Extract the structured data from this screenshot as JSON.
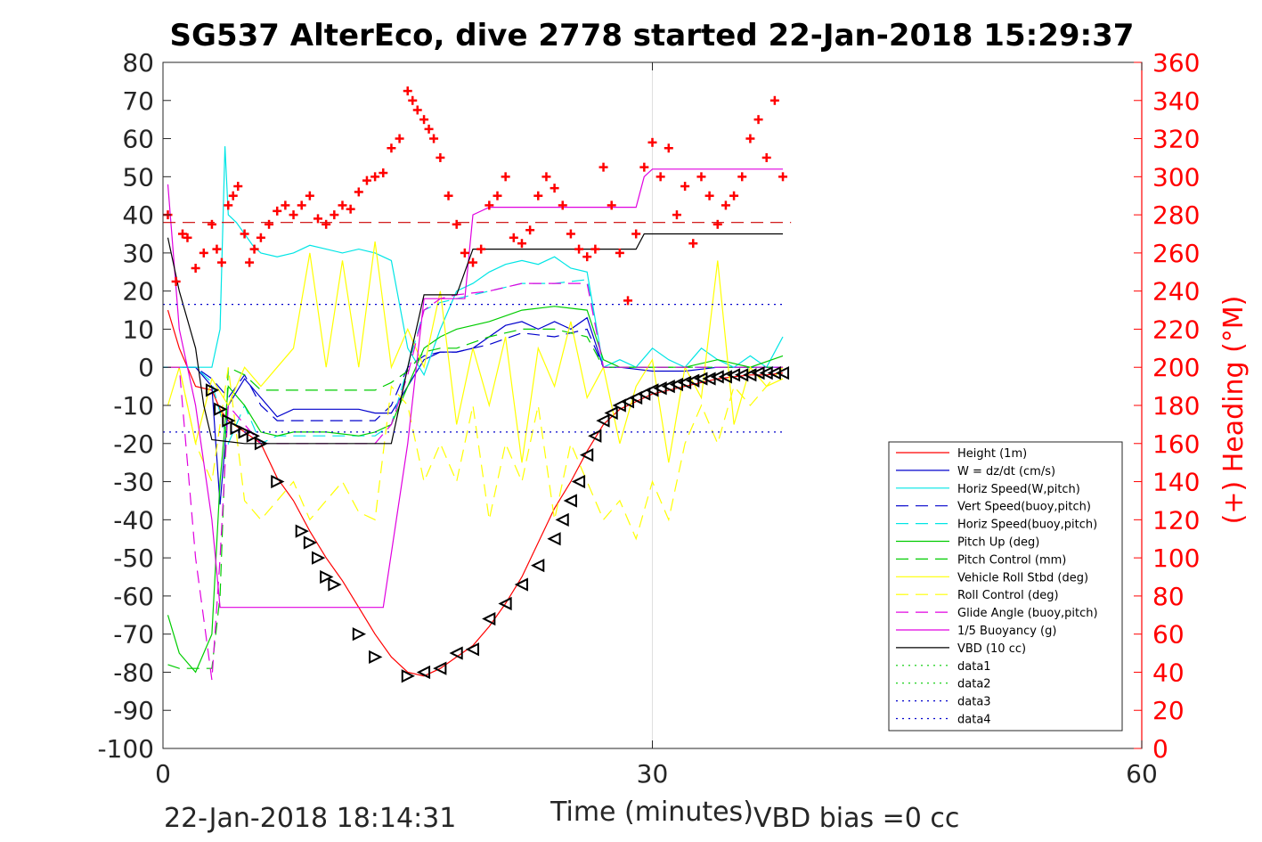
{
  "chart_data": {
    "type": "line",
    "title": "SG537 AlterEco, dive 2778 started 22-Jan-2018 15:29:37",
    "xlabel": "Time (minutes)",
    "ylabel": "",
    "y2label": "(+) Heading (°M)",
    "xlim": [
      0,
      60
    ],
    "ylim": [
      -100,
      80
    ],
    "y2lim": [
      0,
      360
    ],
    "xticks": [
      "0",
      "30",
      "60"
    ],
    "yticks": [
      "80",
      "70",
      "60",
      "50",
      "40",
      "30",
      "20",
      "10",
      "0",
      "-10",
      "-20",
      "-30",
      "-40",
      "-50",
      "-60",
      "-70",
      "-80",
      "-90",
      "-100"
    ],
    "y2ticks": [
      "360",
      "340",
      "320",
      "300",
      "280",
      "260",
      "240",
      "220",
      "200",
      "180",
      "160",
      "140",
      "120",
      "100",
      "80",
      "60",
      "40",
      "20",
      "0"
    ],
    "grid": "x at 30",
    "legend_position": "lower-right",
    "footer_left": "22-Jan-2018 18:14:31",
    "footer_right": "VBD bias =0 cc",
    "colors": {
      "red": "#ff0000",
      "blue": "#0000cc",
      "cyan": "#00e5e5",
      "green": "#00cc00",
      "yellow": "#ffff00",
      "magenta": "#e000e0",
      "black": "#000000"
    },
    "series": [
      {
        "name": "Height (1m)",
        "color": "#ff0000",
        "style": "solid",
        "x": [
          0.3,
          1,
          2,
          3,
          3.5,
          4,
          5,
          6,
          7,
          8,
          9,
          10,
          11,
          12,
          13,
          14,
          15,
          16,
          17,
          18,
          19,
          20,
          21,
          22,
          23,
          24,
          25,
          26,
          27,
          28,
          29,
          30,
          31,
          32,
          33,
          34,
          35,
          36,
          37,
          38
        ],
        "y": [
          15,
          5,
          -5,
          -6,
          -11,
          -14,
          -17,
          -20,
          -29,
          -35,
          -43,
          -50,
          -56,
          -63,
          -70,
          -76,
          -80,
          -81,
          -79,
          -76,
          -73,
          -68,
          -62,
          -55,
          -46,
          -37,
          -30,
          -22,
          -15,
          -11,
          -9,
          -7,
          -6,
          -5,
          -4,
          -3,
          -2.5,
          -2,
          -2,
          -1.5
        ]
      },
      {
        "name": "W = dz/dt (cm/s)",
        "color": "#0000cc",
        "style": "solid",
        "x": [
          0,
          1,
          2,
          3,
          3.5,
          4,
          5,
          6,
          7,
          8,
          10,
          12,
          13,
          14,
          15,
          16,
          17,
          18,
          19,
          20,
          21,
          22,
          23,
          24,
          25,
          26,
          27,
          28,
          30,
          32,
          34,
          36,
          38
        ],
        "y": [
          0,
          0,
          0,
          -5,
          -36,
          -10,
          -3,
          -8,
          -13,
          -11,
          -11,
          -11,
          -12,
          -12,
          -5,
          2,
          4,
          4,
          5,
          8,
          11,
          12,
          10,
          12,
          10,
          13,
          0,
          0,
          -1,
          -1,
          0,
          0,
          0
        ]
      },
      {
        "name": "Horiz Speed(W,pitch)",
        "color": "#00e5e5",
        "style": "solid",
        "x": [
          0,
          1,
          2,
          3,
          3.5,
          3.8,
          4,
          4.5,
          5,
          5.5,
          6,
          7,
          8,
          9,
          10,
          11,
          12,
          13,
          14,
          15,
          16,
          17,
          18,
          19,
          20,
          21,
          22,
          23,
          24,
          25,
          26,
          27,
          28,
          29,
          30,
          31,
          32,
          33,
          34,
          35,
          36,
          37,
          38
        ],
        "y": [
          0,
          0,
          0,
          0,
          10,
          58,
          40,
          38,
          35,
          32,
          30,
          29,
          30,
          32,
          31,
          30,
          31,
          30,
          28,
          5,
          -2,
          10,
          20,
          22,
          25,
          27,
          28,
          27,
          29,
          26,
          25,
          0,
          2,
          0,
          5,
          2,
          0,
          5,
          2,
          0,
          3,
          0,
          8
        ]
      },
      {
        "name": "Vert Speed(buoy,pitch)",
        "color": "#0000cc",
        "style": "dashed",
        "x": [
          0,
          2,
          3,
          4,
          5,
          6,
          7,
          10,
          13,
          14,
          15,
          16,
          17,
          18,
          20,
          22,
          24,
          26,
          27,
          30,
          34,
          38
        ],
        "y": [
          0,
          0,
          -3,
          -8,
          -2,
          -10,
          -14,
          -14,
          -14,
          -10,
          0,
          3,
          4,
          4,
          6,
          9,
          8,
          10,
          0,
          0,
          0,
          0
        ]
      },
      {
        "name": "Horiz Speed(buoy,pitch)",
        "color": "#00e5e5",
        "style": "dashed",
        "x": [
          0,
          2,
          3,
          4,
          5,
          6,
          7,
          10,
          13,
          14,
          15,
          16,
          17,
          18,
          20,
          22,
          24,
          26,
          27,
          30,
          34,
          38
        ],
        "y": [
          0,
          0,
          -4,
          -20,
          -10,
          -20,
          -18,
          -18,
          -18,
          -15,
          0,
          15,
          17,
          18,
          20,
          22,
          22,
          23,
          0,
          0,
          0,
          0
        ]
      },
      {
        "name": "Pitch Up (deg)",
        "color": "#00cc00",
        "style": "solid",
        "x": [
          0.3,
          1,
          2,
          3,
          3.5,
          4,
          5,
          6,
          7,
          8,
          10,
          12,
          13,
          14,
          15,
          16,
          17,
          18,
          20,
          22,
          24,
          26,
          27,
          28,
          30,
          32,
          34,
          36,
          38
        ],
        "y": [
          -65,
          -75,
          -80,
          -70,
          -30,
          -5,
          -10,
          -17,
          -18,
          -17,
          -17,
          -18,
          -17,
          -15,
          -5,
          5,
          8,
          10,
          12,
          15,
          16,
          15,
          2,
          0,
          0,
          0,
          2,
          0,
          3
        ]
      },
      {
        "name": "Pitch Control (mm)",
        "color": "#00cc00",
        "style": "dashed",
        "x": [
          0.3,
          1,
          2,
          3,
          3.5,
          4,
          5,
          6,
          7,
          10,
          13,
          14,
          15,
          16,
          17,
          18,
          20,
          22,
          24,
          26,
          27,
          28,
          30,
          34,
          38
        ],
        "y": [
          -78,
          -79,
          -79,
          -79,
          -60,
          0,
          -2,
          -6,
          -6,
          -6,
          -6,
          -4,
          -1,
          4,
          5,
          5,
          8,
          10,
          10,
          8,
          0,
          0,
          0,
          0,
          0
        ]
      },
      {
        "name": "Vehicle Roll Stbd (deg)",
        "color": "#ffff00",
        "style": "solid",
        "x": [
          0.3,
          1,
          2,
          3,
          4,
          5,
          6,
          7,
          8,
          9,
          10,
          11,
          12,
          13,
          14,
          15,
          16,
          17,
          18,
          19,
          20,
          21,
          22,
          23,
          24,
          25,
          26,
          27,
          28,
          29,
          30,
          31,
          32,
          33,
          34,
          35,
          36,
          37,
          38
        ],
        "y": [
          -10,
          0,
          -20,
          -3,
          -10,
          0,
          -5,
          0,
          5,
          30,
          0,
          28,
          0,
          33,
          0,
          10,
          0,
          20,
          -15,
          5,
          -10,
          8,
          -25,
          5,
          -5,
          12,
          -8,
          0,
          -20,
          -5,
          2,
          -25,
          0,
          -8,
          28,
          -15,
          0,
          -5,
          -3
        ]
      },
      {
        "name": "Roll Control (deg)",
        "color": "#ffff00",
        "style": "dashed",
        "x": [
          0.3,
          1,
          2,
          3,
          4,
          5,
          6,
          7,
          8,
          9,
          10,
          11,
          12,
          13,
          14,
          15,
          16,
          17,
          18,
          19,
          20,
          21,
          22,
          23,
          24,
          25,
          26,
          27,
          28,
          29,
          30,
          31,
          32,
          33,
          34,
          35,
          36,
          37,
          38
        ],
        "y": [
          0,
          0,
          -20,
          -30,
          0,
          -35,
          -40,
          -35,
          -30,
          -40,
          -35,
          -30,
          -38,
          -40,
          -5,
          -10,
          -30,
          -20,
          -30,
          -10,
          -40,
          -20,
          -30,
          -10,
          -40,
          -20,
          -30,
          -40,
          -35,
          -45,
          -30,
          -40,
          -20,
          -10,
          -20,
          -5,
          -10,
          -5,
          0
        ]
      },
      {
        "name": "Glide Angle (buoy,pitch)",
        "color": "#e000e0",
        "style": "dashed",
        "x": [
          0.3,
          1,
          2,
          3,
          3.5,
          4,
          5,
          6,
          7,
          10,
          13,
          14,
          15,
          16,
          17,
          18,
          20,
          22,
          24,
          26,
          27,
          28,
          30,
          34,
          38
        ],
        "y": [
          0,
          0,
          -50,
          -82,
          -50,
          -10,
          -15,
          -20,
          -20,
          -20,
          -20,
          -15,
          -2,
          15,
          18,
          19,
          20,
          22,
          22,
          22,
          0,
          0,
          0,
          0,
          0
        ]
      },
      {
        "name": "1/5 Buoyancy (g)",
        "color": "#e000e0",
        "style": "solid",
        "x": [
          0.3,
          1,
          2,
          3,
          3.5,
          4,
          5,
          8,
          13.5,
          15,
          16,
          17,
          18.5,
          19,
          20,
          25,
          29,
          29.5,
          30,
          38
        ],
        "y": [
          48,
          10,
          -10,
          -40,
          -63,
          -63,
          -63,
          -63,
          -63,
          -20,
          18,
          18,
          18,
          40,
          42,
          42,
          42,
          50,
          52,
          52
        ]
      },
      {
        "name": "VBD (10 cc)",
        "color": "#000000",
        "style": "solid",
        "x": [
          0.3,
          1,
          2,
          2.5,
          3,
          5,
          8,
          12,
          14,
          15,
          16,
          17,
          18,
          19,
          20,
          25,
          29,
          29.5,
          30,
          38
        ],
        "y": [
          34,
          20,
          5,
          -10,
          -19,
          -20,
          -20,
          -20,
          -20,
          0,
          19,
          19,
          19,
          31,
          31,
          31,
          31,
          35,
          35,
          35
        ]
      },
      {
        "name": "data1",
        "color": "#00cc00",
        "style": "dotted",
        "x": [],
        "y": []
      },
      {
        "name": "data2",
        "color": "#00cc00",
        "style": "dotted",
        "x": [],
        "y": []
      },
      {
        "name": "data3",
        "color": "#0000cc",
        "style": "dotted",
        "x": [
          0,
          38
        ],
        "y": [
          16.5,
          16.5
        ]
      },
      {
        "name": "data4",
        "color": "#0000cc",
        "style": "dotted",
        "x": [
          0,
          38
        ],
        "y": [
          -17,
          -17
        ]
      }
    ],
    "reference_lines": [
      {
        "axis": "y2",
        "value": 276,
        "color": "#cc0000",
        "style": "dashed",
        "x": [
          0,
          38.5
        ]
      }
    ],
    "heading_markers": {
      "axis": "y2",
      "color": "#ff0000",
      "symbol": "+",
      "x": [
        0.3,
        0.8,
        1.2,
        1.5,
        2,
        2.5,
        3,
        3.3,
        3.6,
        4,
        4.3,
        4.6,
        5,
        5.3,
        5.6,
        6,
        6.5,
        7,
        7.5,
        8,
        8.5,
        9,
        9.5,
        10,
        10.5,
        11,
        11.5,
        12,
        12.5,
        13,
        13.5,
        14,
        14.5,
        15,
        15.3,
        15.6,
        16,
        16.3,
        16.6,
        17,
        17.5,
        18,
        18.5,
        19,
        19.5,
        20,
        20.5,
        21,
        21.5,
        22,
        22.5,
        23,
        23.5,
        24,
        24.5,
        25,
        25.5,
        26,
        26.5,
        27,
        27.5,
        28,
        28.5,
        29,
        29.5,
        30,
        30.5,
        31,
        31.5,
        32,
        32.5,
        33,
        33.5,
        34,
        34.5,
        35,
        35.5,
        36,
        36.5,
        37,
        37.5,
        38
      ],
      "y": [
        280,
        245,
        270,
        268,
        252,
        260,
        275,
        262,
        255,
        285,
        290,
        295,
        270,
        255,
        262,
        268,
        275,
        282,
        285,
        280,
        285,
        290,
        278,
        275,
        280,
        285,
        283,
        292,
        298,
        300,
        302,
        315,
        320,
        345,
        340,
        335,
        330,
        325,
        320,
        310,
        290,
        275,
        260,
        255,
        262,
        285,
        290,
        300,
        268,
        265,
        272,
        290,
        300,
        294,
        285,
        270,
        262,
        258,
        262,
        305,
        285,
        260,
        235,
        270,
        305,
        318,
        300,
        315,
        280,
        295,
        265,
        300,
        290,
        275,
        285,
        290,
        300,
        320,
        330,
        310,
        340,
        300
      ]
    },
    "profile_markers": {
      "symbol": "triangle",
      "color": "#000000",
      "x": [
        3,
        3.5,
        4,
        4.5,
        5,
        5.5,
        6,
        7,
        8.5,
        9,
        9.5,
        10,
        10.5,
        12,
        13,
        15,
        16,
        17,
        18,
        19,
        20,
        21,
        22,
        23,
        24,
        24.5,
        25,
        25.5,
        26,
        26.5,
        27,
        27.5,
        28,
        28.5,
        29,
        29.5,
        30,
        30.5,
        31,
        31.5,
        32,
        32.5,
        33,
        33.5,
        34,
        34.5,
        35,
        35.5,
        36,
        36.5,
        37,
        37.5,
        38
      ],
      "y": [
        -6,
        -11,
        -14,
        -16,
        -17,
        -18,
        -20,
        -30,
        -43,
        -46,
        -50,
        -55,
        -57,
        -70,
        -76,
        -81,
        -80,
        -79,
        -75,
        -74,
        -66,
        -62,
        -57,
        -52,
        -45,
        -40,
        -35,
        -30,
        -23,
        -18,
        -14,
        -12,
        -10,
        -9,
        -8,
        -7,
        -6,
        -5.5,
        -5,
        -4.5,
        -4,
        -3.5,
        -3,
        -3,
        -2.5,
        -2.5,
        -2,
        -2,
        -2,
        -1.5,
        -1.5,
        -1.5,
        -1.5
      ]
    }
  }
}
